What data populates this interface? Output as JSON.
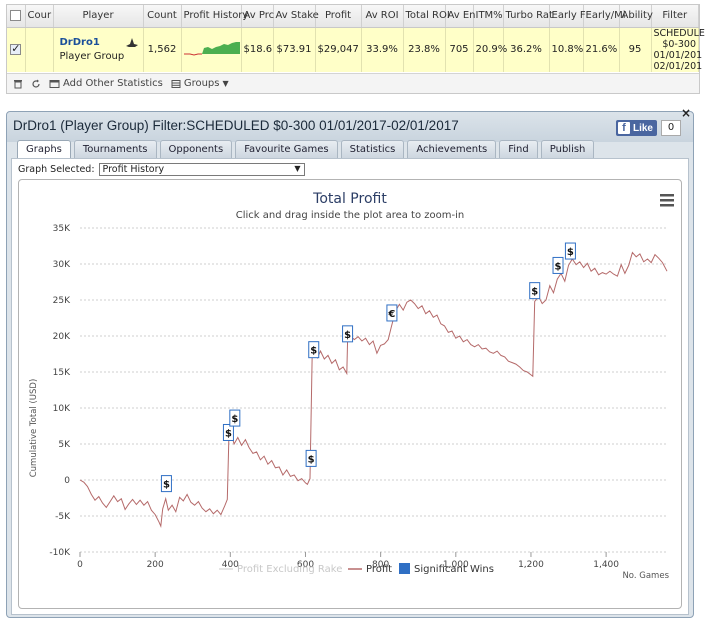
{
  "grid": {
    "columns": [
      "",
      "Cour",
      "Player",
      "Count",
      "Profit History",
      "Av Prc",
      "Av Stake",
      "Profit",
      "Av ROI",
      "Total ROI",
      "Av En",
      "ITM%",
      "Turbo Rat",
      "Early F",
      "Early/Mi",
      "Ability",
      "Filter"
    ],
    "row": {
      "checked": true,
      "player_name": "DrDro1",
      "player_sub": "Player Group",
      "count": "1,562",
      "av_prc": "$18.6",
      "av_stake": "$73.91",
      "profit": "$29,047",
      "av_roi": "33.9%",
      "total_roi": "23.8%",
      "av_en": "705",
      "itm": "20.9%",
      "turbo_rat": "36.2%",
      "early_f": "10.8%",
      "early_mi": "21.6%",
      "ability": "95",
      "filter_lines": [
        "SCHEDULE",
        "$0-300",
        "01/01/201",
        "02/01/201"
      ]
    },
    "toolbar": {
      "add_label": "Add Other Statistics",
      "groups_label": "Groups"
    }
  },
  "panel": {
    "title": "DrDro1 (Player Group) Filter:SCHEDULED $0-300 01/01/2017-02/01/2017",
    "like_label": "Like",
    "like_count": "0",
    "tabs": [
      "Graphs",
      "Tournaments",
      "Opponents",
      "Favourite Games",
      "Statistics",
      "Achievements",
      "Find",
      "Publish"
    ],
    "active_tab": 0,
    "graph_selected_label": "Graph Selected:",
    "graph_selected_value": "Profit History"
  },
  "chart_data": {
    "type": "line",
    "title": "Total Profit",
    "subtitle": "Click and drag inside the plot area to zoom-in",
    "ylabel": "Cumulative Total (USD)",
    "xlabel": "No. Games",
    "xlim": [
      0,
      1562
    ],
    "ylim": [
      -10000,
      35000
    ],
    "x_ticks": [
      0,
      200,
      400,
      600,
      800,
      1000,
      1200,
      1400
    ],
    "x_tick_labels": [
      "0",
      "200",
      "400",
      "600",
      "800",
      "1,000",
      "1,200",
      "1,400"
    ],
    "y_ticks": [
      -10000,
      -5000,
      0,
      5000,
      10000,
      15000,
      20000,
      25000,
      30000,
      35000
    ],
    "y_tick_labels": [
      "-10K",
      "-5K",
      "0",
      "5K",
      "10K",
      "15K",
      "20K",
      "25K",
      "30K",
      "35K"
    ],
    "grid": true,
    "legend_position": "bottom",
    "legend": [
      "Profit Excluding Rake",
      "Profit",
      "Significant Wins"
    ],
    "colors": {
      "profit": "#b56a6a",
      "excl_rake": "#dcdcdc",
      "significant": "#2f6fc4",
      "grid": "#cfcfcf"
    },
    "series": [
      {
        "name": "Profit",
        "points": [
          [
            0,
            0
          ],
          [
            10,
            -300
          ],
          [
            20,
            -900
          ],
          [
            30,
            -2000
          ],
          [
            40,
            -2800
          ],
          [
            50,
            -2300
          ],
          [
            60,
            -3200
          ],
          [
            70,
            -3800
          ],
          [
            80,
            -3000
          ],
          [
            90,
            -2200
          ],
          [
            100,
            -3000
          ],
          [
            110,
            -2600
          ],
          [
            120,
            -4100
          ],
          [
            130,
            -3300
          ],
          [
            140,
            -2700
          ],
          [
            150,
            -3400
          ],
          [
            160,
            -2800
          ],
          [
            170,
            -3500
          ],
          [
            180,
            -3000
          ],
          [
            190,
            -4200
          ],
          [
            200,
            -4800
          ],
          [
            210,
            -5800
          ],
          [
            215,
            -6400
          ],
          [
            220,
            -4000
          ],
          [
            228,
            -2600
          ],
          [
            235,
            -4200
          ],
          [
            245,
            -3500
          ],
          [
            255,
            -4400
          ],
          [
            265,
            -2400
          ],
          [
            275,
            -2900
          ],
          [
            285,
            -2000
          ],
          [
            295,
            -3100
          ],
          [
            305,
            -3500
          ],
          [
            315,
            -3000
          ],
          [
            325,
            -3900
          ],
          [
            335,
            -4400
          ],
          [
            345,
            -4000
          ],
          [
            355,
            -4700
          ],
          [
            365,
            -4200
          ],
          [
            375,
            -4800
          ],
          [
            385,
            -3600
          ],
          [
            392,
            -2700
          ],
          [
            396,
            5500
          ],
          [
            402,
            6500
          ],
          [
            410,
            5000
          ],
          [
            420,
            5900
          ],
          [
            430,
            4800
          ],
          [
            440,
            5600
          ],
          [
            450,
            4500
          ],
          [
            460,
            3700
          ],
          [
            470,
            3900
          ],
          [
            480,
            2800
          ],
          [
            490,
            3300
          ],
          [
            500,
            2200
          ],
          [
            510,
            2700
          ],
          [
            520,
            1700
          ],
          [
            530,
            1800
          ],
          [
            540,
            700
          ],
          [
            550,
            1400
          ],
          [
            560,
            500
          ],
          [
            570,
            700
          ],
          [
            580,
            -100
          ],
          [
            590,
            200
          ],
          [
            600,
            -400
          ],
          [
            605,
            -600
          ],
          [
            612,
            200
          ],
          [
            618,
            17500
          ],
          [
            625,
            18500
          ],
          [
            632,
            17000
          ],
          [
            640,
            17900
          ],
          [
            650,
            16800
          ],
          [
            660,
            17300
          ],
          [
            670,
            16200
          ],
          [
            680,
            16700
          ],
          [
            690,
            15300
          ],
          [
            700,
            15700
          ],
          [
            710,
            14800
          ],
          [
            712,
            19500
          ],
          [
            720,
            20000
          ],
          [
            730,
            19500
          ],
          [
            740,
            19900
          ],
          [
            750,
            19300
          ],
          [
            760,
            19700
          ],
          [
            770,
            18800
          ],
          [
            780,
            19300
          ],
          [
            790,
            17600
          ],
          [
            800,
            18700
          ],
          [
            810,
            18900
          ],
          [
            820,
            19500
          ],
          [
            828,
            21200
          ],
          [
            832,
            22000
          ],
          [
            840,
            23500
          ],
          [
            850,
            24400
          ],
          [
            860,
            23600
          ],
          [
            870,
            24700
          ],
          [
            880,
            25000
          ],
          [
            890,
            24500
          ],
          [
            900,
            23800
          ],
          [
            910,
            24200
          ],
          [
            920,
            23100
          ],
          [
            930,
            23500
          ],
          [
            940,
            22600
          ],
          [
            950,
            22900
          ],
          [
            960,
            21700
          ],
          [
            970,
            21400
          ],
          [
            980,
            20500
          ],
          [
            990,
            20700
          ],
          [
            1000,
            19700
          ],
          [
            1010,
            20000
          ],
          [
            1020,
            19200
          ],
          [
            1030,
            19500
          ],
          [
            1040,
            18800
          ],
          [
            1050,
            18500
          ],
          [
            1060,
            18800
          ],
          [
            1070,
            18200
          ],
          [
            1080,
            18300
          ],
          [
            1090,
            17800
          ],
          [
            1100,
            17600
          ],
          [
            1110,
            17900
          ],
          [
            1120,
            17300
          ],
          [
            1130,
            17100
          ],
          [
            1140,
            16500
          ],
          [
            1150,
            16300
          ],
          [
            1160,
            16100
          ],
          [
            1170,
            15700
          ],
          [
            1180,
            15200
          ],
          [
            1190,
            15000
          ],
          [
            1200,
            14600
          ],
          [
            1205,
            14400
          ],
          [
            1210,
            24800
          ],
          [
            1220,
            25500
          ],
          [
            1230,
            24500
          ],
          [
            1240,
            25000
          ],
          [
            1250,
            27000
          ],
          [
            1260,
            26000
          ],
          [
            1270,
            27900
          ],
          [
            1280,
            28700
          ],
          [
            1290,
            27600
          ],
          [
            1300,
            29800
          ],
          [
            1310,
            30700
          ],
          [
            1320,
            29900
          ],
          [
            1330,
            30300
          ],
          [
            1340,
            29500
          ],
          [
            1350,
            30100
          ],
          [
            1360,
            29000
          ],
          [
            1370,
            29400
          ],
          [
            1380,
            28500
          ],
          [
            1390,
            28800
          ],
          [
            1400,
            28600
          ],
          [
            1410,
            29000
          ],
          [
            1420,
            28600
          ],
          [
            1430,
            28300
          ],
          [
            1440,
            29900
          ],
          [
            1450,
            28700
          ],
          [
            1460,
            29800
          ],
          [
            1470,
            31600
          ],
          [
            1480,
            31000
          ],
          [
            1490,
            31400
          ],
          [
            1500,
            30300
          ],
          [
            1510,
            30700
          ],
          [
            1520,
            30200
          ],
          [
            1530,
            31300
          ],
          [
            1540,
            30800
          ],
          [
            1550,
            30200
          ],
          [
            1562,
            29000
          ]
        ]
      }
    ],
    "significant_wins": [
      {
        "x": 230,
        "y": -500,
        "symbol": "$"
      },
      {
        "x": 395,
        "y": 6600,
        "symbol": "$"
      },
      {
        "x": 412,
        "y": 8600,
        "symbol": "$"
      },
      {
        "x": 615,
        "y": 3000,
        "symbol": "$"
      },
      {
        "x": 622,
        "y": 18100,
        "symbol": "$"
      },
      {
        "x": 712,
        "y": 20300,
        "symbol": "$"
      },
      {
        "x": 830,
        "y": 23200,
        "symbol": "€"
      },
      {
        "x": 1210,
        "y": 26300,
        "symbol": "$"
      },
      {
        "x": 1272,
        "y": 29800,
        "symbol": "$"
      },
      {
        "x": 1305,
        "y": 31800,
        "symbol": "$"
      }
    ]
  }
}
